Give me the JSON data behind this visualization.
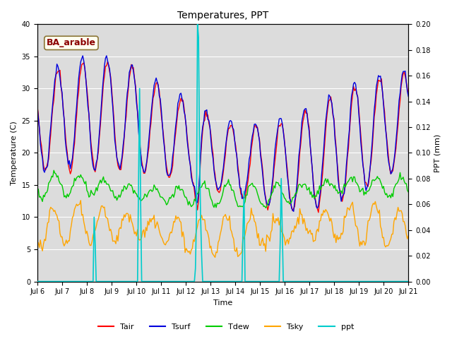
{
  "title": "Temperatures, PPT",
  "xlabel": "Time",
  "ylabel_left": "Temperature (C)",
  "ylabel_right": "PPT (mm)",
  "annotation_text": "BA_arable",
  "annotation_color": "#8B0000",
  "annotation_bg": "#FFFFF0",
  "annotation_border": "#8B7536",
  "ylim_left": [
    0,
    40
  ],
  "ylim_right": [
    0,
    0.2
  ],
  "yticks_left": [
    0,
    5,
    10,
    15,
    20,
    25,
    30,
    35,
    40
  ],
  "yticks_right": [
    0.0,
    0.02,
    0.04,
    0.06,
    0.08,
    0.1,
    0.12,
    0.14,
    0.16,
    0.18,
    0.2
  ],
  "colors": {
    "Tair": "#FF0000",
    "Tsurf": "#0000DD",
    "Tdew": "#00CC00",
    "Tsky": "#FFA500",
    "ppt": "#00CCCC"
  },
  "bg_inner": "#DCDCDC",
  "bg_outer": "#F5F5F5",
  "grid_color": "#FFFFFF",
  "fig_bg": "#FFFFFF",
  "lw_temp": 1.0,
  "lw_ppt": 1.2,
  "title_fontsize": 10,
  "label_fontsize": 8,
  "tick_fontsize": 7,
  "legend_fontsize": 8
}
